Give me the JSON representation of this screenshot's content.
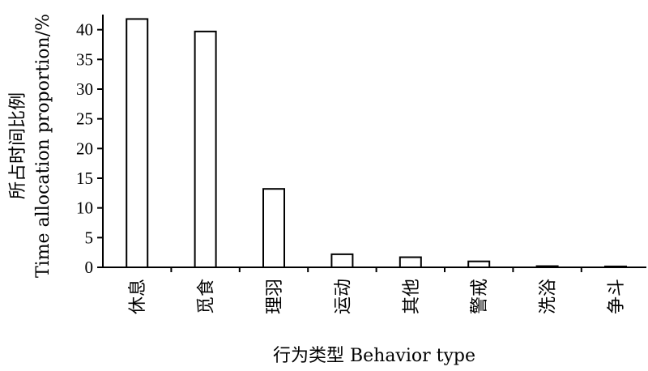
{
  "chart_data": {
    "type": "bar",
    "categories": [
      "休息",
      "觅食",
      "理羽",
      "运动",
      "其他",
      "警戒",
      "洗浴",
      "争斗"
    ],
    "values": [
      41.8,
      39.7,
      13.2,
      2.2,
      1.7,
      1.0,
      0.2,
      0.15
    ],
    "xlabel": "行为类型  Behavior type",
    "ylabel_cn": "所占时间比例",
    "ylabel_en": "Time allocation proportion/%",
    "ylim": [
      0,
      42
    ],
    "yticks": [
      0,
      5,
      10,
      15,
      20,
      25,
      30,
      35,
      40
    ],
    "grid": false,
    "bar_fill": "#ffffff",
    "bar_stroke": "#000000"
  }
}
